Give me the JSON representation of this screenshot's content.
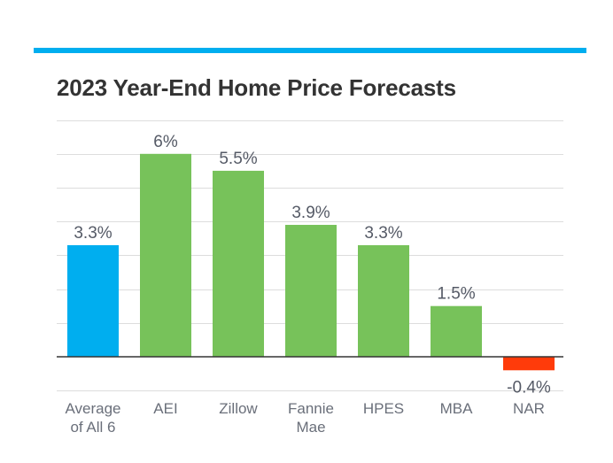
{
  "colors": {
    "rule": "#00aeef",
    "average": "#00aeef",
    "positive": "#77c25a",
    "negative": "#ff3b0a",
    "grid": "#dddddd",
    "axis": "#333333"
  },
  "chart_data": {
    "type": "bar",
    "title": "2023 Year-End Home Price Forecasts",
    "xlabel": "",
    "ylabel": "",
    "ylim": [
      -1.0,
      7.0
    ],
    "grid": true,
    "categories": [
      [
        "Average",
        "of All 6"
      ],
      [
        "AEI"
      ],
      [
        "Zillow"
      ],
      [
        "Fannie",
        "Mae"
      ],
      [
        "HPES"
      ],
      [
        "MBA"
      ],
      [
        "NAR"
      ]
    ],
    "values": [
      3.3,
      6,
      5.5,
      3.9,
      3.3,
      1.5,
      -0.4
    ],
    "labels": [
      "3.3%",
      "6%",
      "5.5%",
      "3.9%",
      "3.3%",
      "1.5%",
      "-0.4%"
    ],
    "highlight": [
      true,
      false,
      false,
      false,
      false,
      false,
      false
    ]
  }
}
